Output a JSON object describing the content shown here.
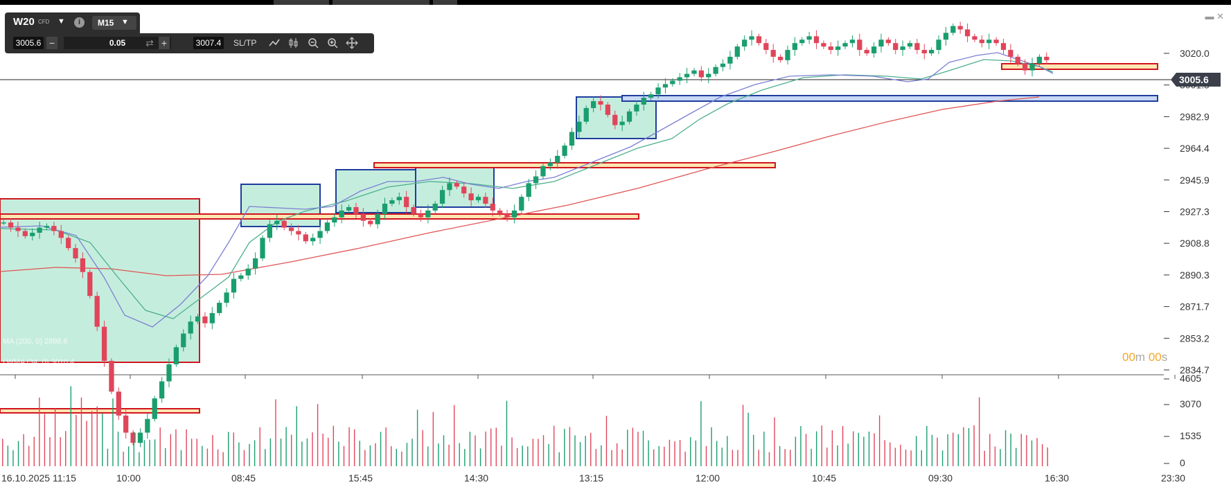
{
  "header": {
    "symbol": "W20",
    "symbol_type": "CFD",
    "timeframe": "M15",
    "bid": "3005.6",
    "volume": "0.05",
    "ask": "3007.4",
    "sltp_label": "SL/TP",
    "minus": "−",
    "plus": "+"
  },
  "icons": [
    "info-icon",
    "caret-down-icon",
    "swap-icon",
    "line-chart-icon",
    "candles-icon",
    "zoom-out-icon",
    "zoom-in-icon",
    "crosshair-icon",
    "minimize-icon",
    "close-icon"
  ],
  "timer": {
    "minutes": "00",
    "m": "m",
    "seconds": "00",
    "s": "s"
  },
  "colors": {
    "bull": "#1a9e6e",
    "bear": "#e0455a",
    "ema_fast": "#7b7fd4",
    "ema_mid": "#4caf8e",
    "ema_slow": "#e05555",
    "rect_red": "#d0141e",
    "rect_blue": "#1e3c9e",
    "zone_fill": "#7fd8b4"
  },
  "chart_data": {
    "type": "candlestick",
    "price_axis": {
      "labels": [
        "3020.0",
        "3001.5",
        "2982.9",
        "2964.4",
        "2945.9",
        "2927.3",
        "2908.8",
        "2890.3",
        "2871.7",
        "2853.2",
        "2834.7"
      ],
      "current_price": "3005.6"
    },
    "volume_axis": {
      "labels": [
        "4605",
        "3070",
        "1535",
        "0"
      ]
    },
    "time_labels": [
      "16.10.2025 11:15",
      "10:00",
      "08:45",
      "15:45",
      "14:30",
      "13:15",
      "12:00",
      "10:45",
      "09:30",
      "16:30",
      "23:30"
    ],
    "legend_text": [
      "MA (200, 0) 2898.6",
      "LWMA (34, 0) 3010.4"
    ],
    "indicators": [
      "EMA fast",
      "EMA mid",
      "MA 200"
    ]
  }
}
